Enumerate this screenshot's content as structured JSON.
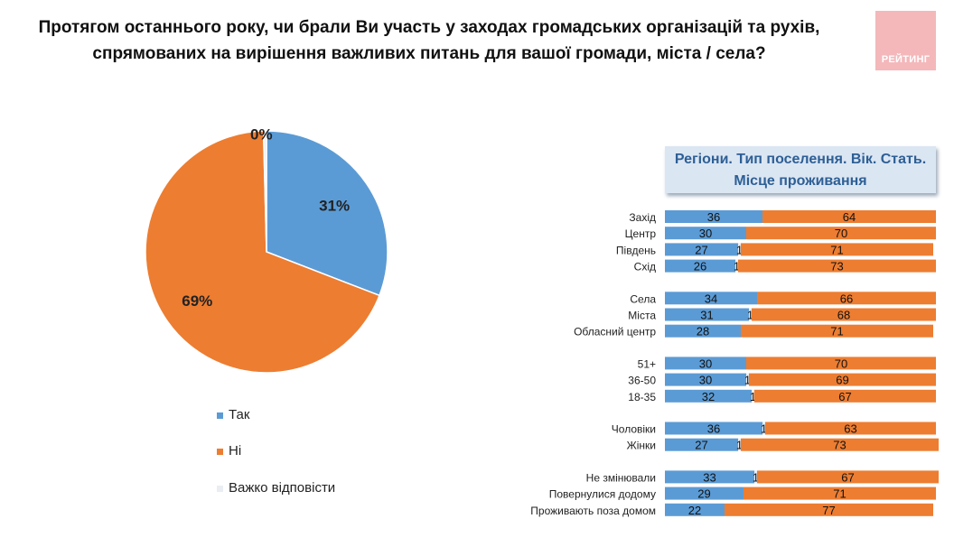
{
  "title_line1": "Протягом останнього року, чи брали Ви участь у заходах громадських організацій та рухів,",
  "title_line2": "спрямованих на вирішення важливих питань для вашої громади, міста / села?",
  "logo_text": "РЕЙТИНГ",
  "panel_title_line1": "Регіони. Тип поселення. Вік. Стать.",
  "panel_title_line2": "Місце проживання",
  "colors": {
    "yes": "#5b9bd5",
    "no": "#ed7d31",
    "hard": "#eaeef3",
    "logo": "#f4b8bb"
  },
  "chart_data": [
    {
      "type": "pie",
      "categories": [
        "Так",
        "Ні",
        "Важко відповісти"
      ],
      "values": [
        31,
        69,
        0.4
      ],
      "labels": [
        "31%",
        "69%",
        "0%"
      ]
    },
    {
      "type": "bar",
      "stacked": true,
      "orientation": "horizontal",
      "categories": [
        "Захід",
        "Центр",
        "Південь",
        "Схід",
        "Села",
        "Міста",
        "Обласний центр",
        "51+",
        "36-50",
        "18-35",
        "Чоловіки",
        "Жінки",
        "Не змінювали",
        "Повернулися додому",
        "Проживають поза домом"
      ],
      "groups": [
        4,
        3,
        3,
        2,
        3
      ],
      "series": [
        {
          "name": "Так",
          "values": [
            36,
            30,
            27,
            26,
            34,
            31,
            28,
            30,
            30,
            32,
            36,
            27,
            33,
            29,
            22
          ]
        },
        {
          "name": "Важко відповісти",
          "values": [
            0,
            0,
            1,
            1,
            0,
            1,
            0,
            0,
            1,
            1,
            1,
            1,
            1,
            0,
            0
          ]
        },
        {
          "name": "Ні",
          "values": [
            64,
            70,
            71,
            73,
            66,
            68,
            71,
            70,
            69,
            67,
            63,
            73,
            67,
            71,
            77
          ]
        }
      ],
      "xlim": [
        0,
        100
      ]
    }
  ]
}
